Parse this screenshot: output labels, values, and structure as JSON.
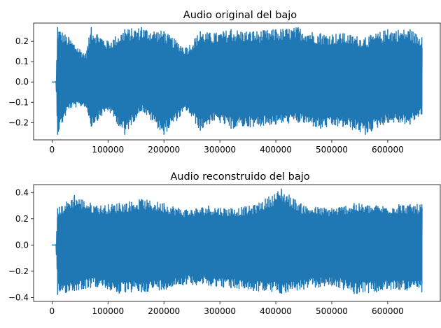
{
  "chart_data": [
    {
      "type": "line",
      "title": "Audio original del bajo",
      "xlabel": "",
      "ylabel": "",
      "xlim": [
        -33000,
        694000
      ],
      "ylim": [
        -0.285,
        0.29
      ],
      "xticks": [
        0,
        100000,
        200000,
        300000,
        400000,
        500000,
        600000
      ],
      "xtick_labels": [
        "0",
        "100000",
        "200000",
        "300000",
        "400000",
        "500000",
        "600000"
      ],
      "yticks": [
        -0.2,
        -0.1,
        0.0,
        0.1,
        0.2
      ],
      "ytick_labels": [
        "−0.2",
        "−0.1",
        "0.0",
        "0.1",
        "0.2"
      ],
      "series_color": "#1f77b4",
      "grid": false,
      "series": [
        {
          "x": [
            0,
            7000,
            10000,
            30000,
            60000,
            70000,
            100000,
            130000,
            160000,
            200000,
            240000,
            265000,
            290000,
            320000,
            360000,
            400000,
            440000,
            480000,
            520000,
            560000,
            600000,
            640000,
            661000
          ],
          "y_max": [
            0.0,
            0.0,
            0.27,
            0.22,
            0.14,
            0.27,
            0.2,
            0.26,
            0.27,
            0.25,
            0.17,
            0.25,
            0.24,
            0.26,
            0.25,
            0.26,
            0.27,
            0.24,
            0.24,
            0.22,
            0.26,
            0.26,
            0.22
          ],
          "y_min": [
            0.0,
            0.0,
            -0.26,
            -0.13,
            -0.12,
            -0.22,
            -0.14,
            -0.26,
            -0.14,
            -0.26,
            -0.14,
            -0.24,
            -0.19,
            -0.23,
            -0.22,
            -0.21,
            -0.2,
            -0.23,
            -0.22,
            -0.26,
            -0.2,
            -0.21,
            -0.16
          ]
        }
      ]
    },
    {
      "type": "line",
      "title": "Audio reconstruido del bajo",
      "xlabel": "",
      "ylabel": "",
      "xlim": [
        -33000,
        694000
      ],
      "ylim": [
        -0.43,
        0.46
      ],
      "xticks": [
        0,
        100000,
        200000,
        300000,
        400000,
        500000,
        600000
      ],
      "xtick_labels": [
        "0",
        "100000",
        "200000",
        "300000",
        "400000",
        "500000",
        "600000"
      ],
      "yticks": [
        -0.4,
        -0.2,
        0.0,
        0.2,
        0.4
      ],
      "ytick_labels": [
        "−0.4",
        "−0.2",
        "0.0",
        "0.2",
        "0.4"
      ],
      "series_color": "#1f77b4",
      "grid": false,
      "series": [
        {
          "x": [
            0,
            7000,
            10000,
            40000,
            80000,
            120000,
            160000,
            200000,
            240000,
            280000,
            320000,
            360000,
            410000,
            450000,
            500000,
            540000,
            580000,
            620000,
            661000
          ],
          "y_max": [
            0.0,
            0.0,
            0.28,
            0.38,
            0.3,
            0.32,
            0.35,
            0.32,
            0.27,
            0.3,
            0.28,
            0.3,
            0.43,
            0.3,
            0.28,
            0.32,
            0.3,
            0.31,
            0.31
          ],
          "y_min": [
            0.0,
            0.0,
            -0.38,
            -0.35,
            -0.32,
            -0.37,
            -0.36,
            -0.34,
            -0.3,
            -0.31,
            -0.33,
            -0.35,
            -0.37,
            -0.34,
            -0.31,
            -0.37,
            -0.36,
            -0.34,
            -0.36
          ]
        }
      ]
    }
  ]
}
